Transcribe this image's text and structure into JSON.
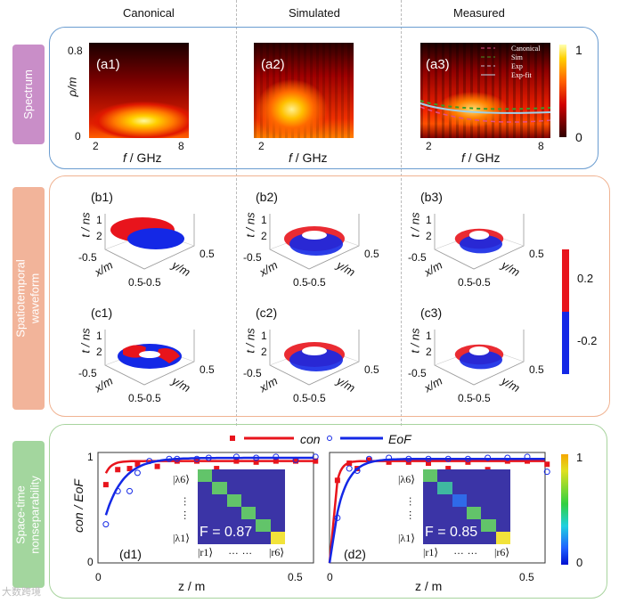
{
  "columns": [
    "Canonical",
    "Simulated",
    "Measured"
  ],
  "rows": {
    "spectrum": "Spectrum",
    "waveform": [
      "Spatiotemporal",
      "waveform"
    ],
    "nonsep": [
      "Space-time",
      "nonseparability"
    ]
  },
  "spectrum": {
    "panels": [
      "(a1)",
      "(a2)",
      "(a3)"
    ],
    "ylabel": "ρ/m",
    "yticks": [
      "0.8",
      "0"
    ],
    "xticks": [
      "2",
      "8"
    ],
    "xlabel_var": "f",
    "xlabel_unit": " / GHz",
    "legend": [
      "Canonical",
      "Sim",
      "Exp",
      "Exp-fit"
    ],
    "colorbar": {
      "max": "1",
      "min": "0"
    }
  },
  "waveform": {
    "panels": [
      "(b1)",
      "(b2)",
      "(b3)",
      "(c1)",
      "(c2)",
      "(c3)"
    ],
    "tlabel": "t / ns",
    "tticks": [
      "1",
      "2"
    ],
    "xlabel": "x/m",
    "ylabel": "y/m",
    "xticks": [
      "-0.5",
      "0.5"
    ],
    "yticks": [
      "-0.5",
      "0.5"
    ],
    "colorbar": {
      "high": "0.2",
      "low": "-0.2"
    },
    "colors": {
      "pos": "#e8141c",
      "neg": "#1428e6"
    }
  },
  "chart_data": [
    {
      "type": "line",
      "title": "(d1)",
      "xlabel": "z / m",
      "ylabel": "con / EoF",
      "xlim": [
        0,
        0.55
      ],
      "ylim": [
        0,
        1
      ],
      "xticks": [
        "0",
        "0.5"
      ],
      "yticks": [
        "0",
        "1"
      ],
      "legend": [
        "con",
        "EoF"
      ],
      "series": [
        {
          "name": "con",
          "color": "#e8141c",
          "marker": "square",
          "x": [
            0.02,
            0.05,
            0.08,
            0.1,
            0.15,
            0.2,
            0.25,
            0.3,
            0.35,
            0.4,
            0.45,
            0.5,
            0.55
          ],
          "y": [
            0.73,
            0.87,
            0.88,
            0.92,
            0.9,
            0.95,
            0.95,
            0.88,
            0.95,
            0.94,
            0.95,
            0.95,
            0.95
          ],
          "fit": {
            "a": 0.95,
            "b": 0.45,
            "tau": 0.015
          }
        },
        {
          "name": "EoF",
          "color": "#1428e6",
          "marker": "circle",
          "x": [
            0.02,
            0.05,
            0.08,
            0.1,
            0.13,
            0.18,
            0.2,
            0.25,
            0.28,
            0.35,
            0.4,
            0.45,
            0.5,
            0.55
          ],
          "y": [
            0.36,
            0.67,
            0.67,
            0.84,
            0.95,
            0.97,
            0.97,
            0.97,
            0.98,
            0.99,
            0.98,
            0.99,
            0.96,
            0.99
          ],
          "fit": {
            "a": 0.98,
            "b": 0.85,
            "tau": 0.045
          }
        }
      ],
      "inset": {
        "F_label": "F = 0.87",
        "row_top": "|λ6⟩",
        "row_bottom": "|λ1⟩",
        "col_left": "|r1⟩",
        "col_right": "|r6⟩",
        "dots": "… …",
        "diag": [
          0.6,
          0.6,
          0.6,
          0.6,
          0.6,
          1.0
        ],
        "offdiag_low": [
          [
            5,
            4,
            0.2
          ]
        ]
      }
    },
    {
      "type": "line",
      "title": "(d2)",
      "xlabel": "z / m",
      "ylabel": "",
      "xlim": [
        0,
        0.55
      ],
      "ylim": [
        0,
        1
      ],
      "xticks": [
        "0",
        "0.5"
      ],
      "yticks": [],
      "series": [
        {
          "name": "con",
          "color": "#e8141c",
          "marker": "square",
          "x": [
            0.02,
            0.05,
            0.07,
            0.1,
            0.15,
            0.2,
            0.25,
            0.3,
            0.35,
            0.4,
            0.45,
            0.5,
            0.55
          ],
          "y": [
            0.77,
            0.93,
            0.88,
            0.96,
            0.94,
            0.94,
            0.93,
            0.88,
            0.94,
            0.87,
            0.95,
            0.95,
            0.92
          ],
          "fit": {
            "a": 0.95,
            "b": 1.0,
            "tau": 0.012
          }
        },
        {
          "name": "EoF",
          "color": "#1428e6",
          "marker": "circle",
          "x": [
            0.02,
            0.05,
            0.07,
            0.1,
            0.15,
            0.2,
            0.25,
            0.3,
            0.35,
            0.4,
            0.45,
            0.5,
            0.55
          ],
          "y": [
            0.42,
            0.88,
            0.86,
            0.97,
            0.98,
            0.97,
            0.97,
            0.97,
            0.97,
            0.98,
            0.98,
            0.99,
            0.85
          ],
          "fit": {
            "a": 0.97,
            "b": 1.0,
            "tau": 0.03
          }
        }
      ],
      "inset": {
        "F_label": "F = 0.85",
        "row_top": "|λ6⟩",
        "row_bottom": "|λ1⟩",
        "col_left": "|r1⟩",
        "col_right": "|r6⟩",
        "dots": "… …",
        "diag": [
          0.6,
          0.5,
          0.4,
          0.6,
          0.6,
          0.95
        ]
      }
    },
    {
      "type": "colorbar",
      "max": "1",
      "min": "0"
    }
  ],
  "watermark": "大数跨境"
}
